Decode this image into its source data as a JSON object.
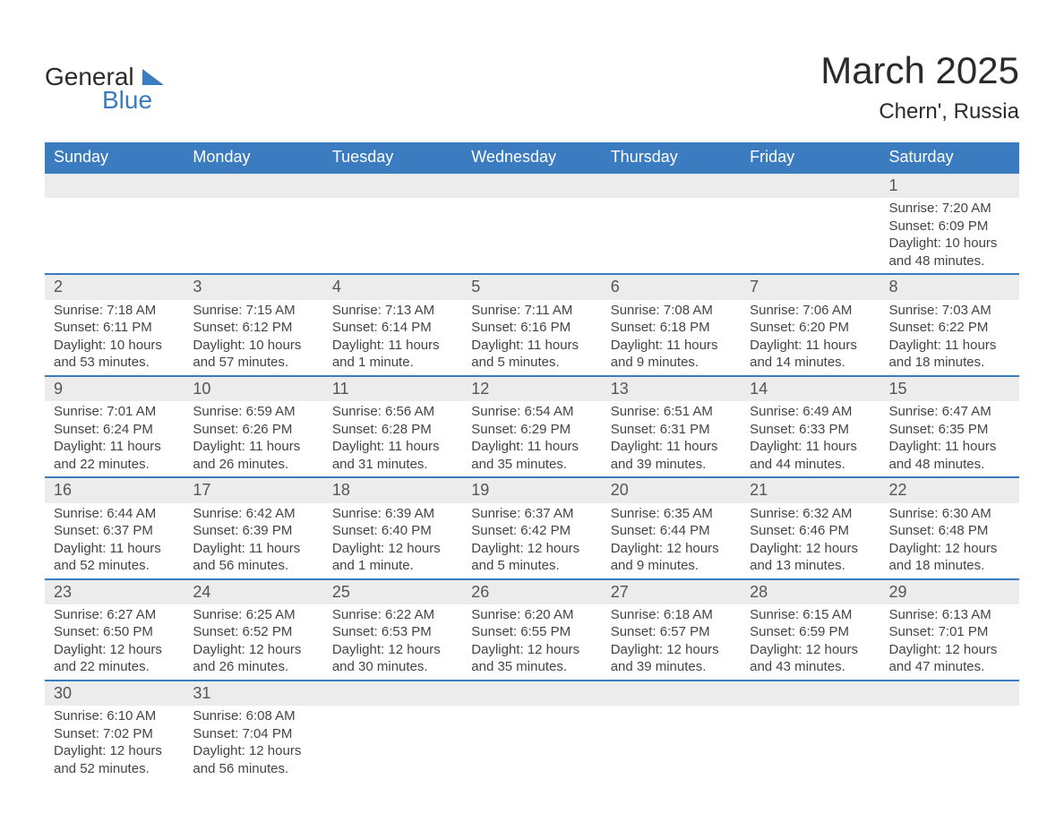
{
  "header": {
    "logo_general": "General",
    "logo_blue": "Blue",
    "month_title": "March 2025",
    "location": "Chern', Russia"
  },
  "style": {
    "header_bg": "#3b7bbf",
    "header_text": "#ffffff",
    "daynum_bg": "#ececec",
    "row_border": "#3b7bbf",
    "body_text": "#444444",
    "title_text": "#2b2b2b",
    "font_family": "Arial, Helvetica, sans-serif",
    "page_bg": "#ffffff",
    "title_fontsize": 42,
    "location_fontsize": 24,
    "weekday_fontsize": 18,
    "daynum_fontsize": 18,
    "cell_fontsize": 15
  },
  "weekdays": [
    "Sunday",
    "Monday",
    "Tuesday",
    "Wednesday",
    "Thursday",
    "Friday",
    "Saturday"
  ],
  "weeks": [
    [
      null,
      null,
      null,
      null,
      null,
      null,
      {
        "day": "1",
        "sunrise": "Sunrise: 7:20 AM",
        "sunset": "Sunset: 6:09 PM",
        "daylight": "Daylight: 10 hours and 48 minutes."
      }
    ],
    [
      {
        "day": "2",
        "sunrise": "Sunrise: 7:18 AM",
        "sunset": "Sunset: 6:11 PM",
        "daylight": "Daylight: 10 hours and 53 minutes."
      },
      {
        "day": "3",
        "sunrise": "Sunrise: 7:15 AM",
        "sunset": "Sunset: 6:12 PM",
        "daylight": "Daylight: 10 hours and 57 minutes."
      },
      {
        "day": "4",
        "sunrise": "Sunrise: 7:13 AM",
        "sunset": "Sunset: 6:14 PM",
        "daylight": "Daylight: 11 hours and 1 minute."
      },
      {
        "day": "5",
        "sunrise": "Sunrise: 7:11 AM",
        "sunset": "Sunset: 6:16 PM",
        "daylight": "Daylight: 11 hours and 5 minutes."
      },
      {
        "day": "6",
        "sunrise": "Sunrise: 7:08 AM",
        "sunset": "Sunset: 6:18 PM",
        "daylight": "Daylight: 11 hours and 9 minutes."
      },
      {
        "day": "7",
        "sunrise": "Sunrise: 7:06 AM",
        "sunset": "Sunset: 6:20 PM",
        "daylight": "Daylight: 11 hours and 14 minutes."
      },
      {
        "day": "8",
        "sunrise": "Sunrise: 7:03 AM",
        "sunset": "Sunset: 6:22 PM",
        "daylight": "Daylight: 11 hours and 18 minutes."
      }
    ],
    [
      {
        "day": "9",
        "sunrise": "Sunrise: 7:01 AM",
        "sunset": "Sunset: 6:24 PM",
        "daylight": "Daylight: 11 hours and 22 minutes."
      },
      {
        "day": "10",
        "sunrise": "Sunrise: 6:59 AM",
        "sunset": "Sunset: 6:26 PM",
        "daylight": "Daylight: 11 hours and 26 minutes."
      },
      {
        "day": "11",
        "sunrise": "Sunrise: 6:56 AM",
        "sunset": "Sunset: 6:28 PM",
        "daylight": "Daylight: 11 hours and 31 minutes."
      },
      {
        "day": "12",
        "sunrise": "Sunrise: 6:54 AM",
        "sunset": "Sunset: 6:29 PM",
        "daylight": "Daylight: 11 hours and 35 minutes."
      },
      {
        "day": "13",
        "sunrise": "Sunrise: 6:51 AM",
        "sunset": "Sunset: 6:31 PM",
        "daylight": "Daylight: 11 hours and 39 minutes."
      },
      {
        "day": "14",
        "sunrise": "Sunrise: 6:49 AM",
        "sunset": "Sunset: 6:33 PM",
        "daylight": "Daylight: 11 hours and 44 minutes."
      },
      {
        "day": "15",
        "sunrise": "Sunrise: 6:47 AM",
        "sunset": "Sunset: 6:35 PM",
        "daylight": "Daylight: 11 hours and 48 minutes."
      }
    ],
    [
      {
        "day": "16",
        "sunrise": "Sunrise: 6:44 AM",
        "sunset": "Sunset: 6:37 PM",
        "daylight": "Daylight: 11 hours and 52 minutes."
      },
      {
        "day": "17",
        "sunrise": "Sunrise: 6:42 AM",
        "sunset": "Sunset: 6:39 PM",
        "daylight": "Daylight: 11 hours and 56 minutes."
      },
      {
        "day": "18",
        "sunrise": "Sunrise: 6:39 AM",
        "sunset": "Sunset: 6:40 PM",
        "daylight": "Daylight: 12 hours and 1 minute."
      },
      {
        "day": "19",
        "sunrise": "Sunrise: 6:37 AM",
        "sunset": "Sunset: 6:42 PM",
        "daylight": "Daylight: 12 hours and 5 minutes."
      },
      {
        "day": "20",
        "sunrise": "Sunrise: 6:35 AM",
        "sunset": "Sunset: 6:44 PM",
        "daylight": "Daylight: 12 hours and 9 minutes."
      },
      {
        "day": "21",
        "sunrise": "Sunrise: 6:32 AM",
        "sunset": "Sunset: 6:46 PM",
        "daylight": "Daylight: 12 hours and 13 minutes."
      },
      {
        "day": "22",
        "sunrise": "Sunrise: 6:30 AM",
        "sunset": "Sunset: 6:48 PM",
        "daylight": "Daylight: 12 hours and 18 minutes."
      }
    ],
    [
      {
        "day": "23",
        "sunrise": "Sunrise: 6:27 AM",
        "sunset": "Sunset: 6:50 PM",
        "daylight": "Daylight: 12 hours and 22 minutes."
      },
      {
        "day": "24",
        "sunrise": "Sunrise: 6:25 AM",
        "sunset": "Sunset: 6:52 PM",
        "daylight": "Daylight: 12 hours and 26 minutes."
      },
      {
        "day": "25",
        "sunrise": "Sunrise: 6:22 AM",
        "sunset": "Sunset: 6:53 PM",
        "daylight": "Daylight: 12 hours and 30 minutes."
      },
      {
        "day": "26",
        "sunrise": "Sunrise: 6:20 AM",
        "sunset": "Sunset: 6:55 PM",
        "daylight": "Daylight: 12 hours and 35 minutes."
      },
      {
        "day": "27",
        "sunrise": "Sunrise: 6:18 AM",
        "sunset": "Sunset: 6:57 PM",
        "daylight": "Daylight: 12 hours and 39 minutes."
      },
      {
        "day": "28",
        "sunrise": "Sunrise: 6:15 AM",
        "sunset": "Sunset: 6:59 PM",
        "daylight": "Daylight: 12 hours and 43 minutes."
      },
      {
        "day": "29",
        "sunrise": "Sunrise: 6:13 AM",
        "sunset": "Sunset: 7:01 PM",
        "daylight": "Daylight: 12 hours and 47 minutes."
      }
    ],
    [
      {
        "day": "30",
        "sunrise": "Sunrise: 6:10 AM",
        "sunset": "Sunset: 7:02 PM",
        "daylight": "Daylight: 12 hours and 52 minutes."
      },
      {
        "day": "31",
        "sunrise": "Sunrise: 6:08 AM",
        "sunset": "Sunset: 7:04 PM",
        "daylight": "Daylight: 12 hours and 56 minutes."
      },
      null,
      null,
      null,
      null,
      null
    ]
  ]
}
